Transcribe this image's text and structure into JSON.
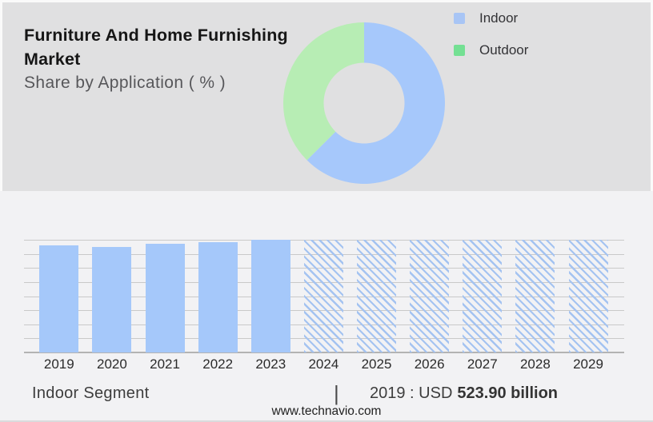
{
  "header": {
    "title": "Furniture And Home Furnishing Market",
    "subtitle": "Share by Application ( % )"
  },
  "legend": [
    {
      "label": "Indoor",
      "color": "#a8c5f5"
    },
    {
      "label": "Outdoor",
      "color": "#74e093"
    }
  ],
  "footer": {
    "segment_label": "Indoor Segment",
    "separator": "|",
    "value_prefix": "2019 : USD",
    "value_bold": "523.90 billion",
    "website": "www.technavio.com"
  },
  "colors": {
    "donut_indoor": "#a6c8fb",
    "donut_outdoor": "#b7edb4",
    "bar_fill": "#a5c8fa",
    "hatch_line": "#a4c3f1",
    "top_panel_bg": "#e0e0e1",
    "bottom_panel_bg": "#f2f2f4",
    "gridline": "#c9c9c9"
  },
  "chart_data": [
    {
      "type": "pie",
      "variant": "donut",
      "title": "Share by Application ( % )",
      "labels": [
        "Indoor",
        "Outdoor"
      ],
      "values_percent": [
        62.5,
        37.5
      ],
      "colors": [
        "#a6c8fb",
        "#b7edb4"
      ],
      "start_angle_deg": 0,
      "direction": "clockwise",
      "legend_position": "right",
      "inner_radius_ratio": 0.5
    },
    {
      "type": "bar",
      "title": "Indoor Segment",
      "categories": [
        "2019",
        "2020",
        "2021",
        "2022",
        "2023",
        "2024",
        "2025",
        "2026",
        "2027",
        "2028",
        "2029"
      ],
      "values_relative_percent": [
        95,
        93.6,
        96.2,
        97.9,
        100,
        100,
        100,
        100,
        100,
        100,
        100
      ],
      "solid_years": [
        "2019",
        "2020",
        "2021",
        "2022",
        "2023"
      ],
      "hatched_forecast_years": [
        "2024",
        "2025",
        "2026",
        "2027",
        "2028",
        "2029"
      ],
      "annotation": "2019 : USD 523.90 billion",
      "gridlines": 9,
      "grid": true,
      "xlabel": "",
      "ylabel": ""
    }
  ]
}
